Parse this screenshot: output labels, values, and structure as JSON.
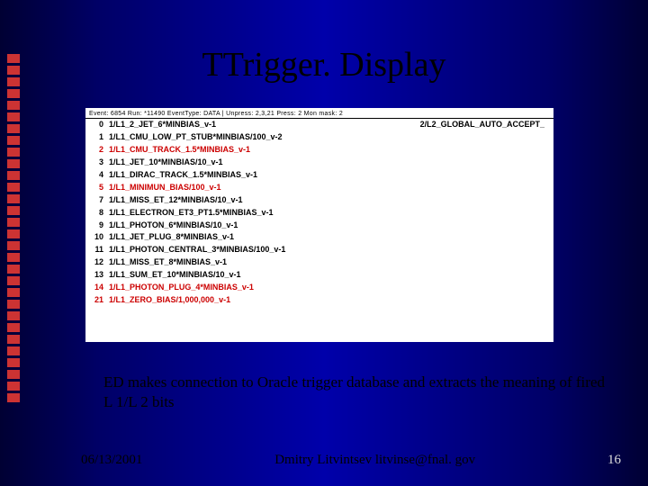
{
  "title": "TTrigger. Display",
  "panel_header": "Event: 6854  Run: *11490  EventType: DATA | Unpress: 2,3,21 Press: 2 Mon mask: 2",
  "rows": [
    {
      "idx": "0",
      "text": "1/L1_2_JET_6*MINBIAS_v-1",
      "color": "black",
      "extra": "2/L2_GLOBAL_AUTO_ACCEPT_"
    },
    {
      "idx": "1",
      "text": "1/L1_CMU_LOW_PT_STUB*MINBIAS/100_v-2",
      "color": "black"
    },
    {
      "idx": "2",
      "text": "1/L1_CMU_TRACK_1.5*MINBIAS_v-1",
      "color": "red"
    },
    {
      "idx": "3",
      "text": "1/L1_JET_10*MINBIAS/10_v-1",
      "color": "black"
    },
    {
      "idx": "4",
      "text": "1/L1_DIRAC_TRACK_1.5*MINBIAS_v-1",
      "color": "black"
    },
    {
      "idx": "5",
      "text": "1/L1_MINIMUN_BIAS/100_v-1",
      "color": "red"
    },
    {
      "idx": "7",
      "text": "1/L1_MISS_ET_12*MINBIAS/10_v-1",
      "color": "black"
    },
    {
      "idx": "8",
      "text": "1/L1_ELECTRON_ET3_PT1.5*MINBIAS_v-1",
      "color": "black"
    },
    {
      "idx": "9",
      "text": "1/L1_PHOTON_6*MINBIAS/10_v-1",
      "color": "black"
    },
    {
      "idx": "10",
      "text": "1/L1_JET_PLUG_8*MINBIAS_v-1",
      "color": "black"
    },
    {
      "idx": "11",
      "text": "1/L1_PHOTON_CENTRAL_3*MINBIAS/100_v-1",
      "color": "black"
    },
    {
      "idx": "12",
      "text": "1/L1_MISS_ET_8*MINBIAS_v-1",
      "color": "black"
    },
    {
      "idx": "13",
      "text": "1/L1_SUM_ET_10*MINBIAS/10_v-1",
      "color": "black"
    },
    {
      "idx": "14",
      "text": "1/L1_PHOTON_PLUG_4*MINBIAS_v-1",
      "color": "red"
    },
    {
      "idx": "21",
      "text": "1/L1_ZERO_BIAS/1,000,000_v-1",
      "color": "red"
    }
  ],
  "caption": "ED makes connection to Oracle trigger database and extracts the meaning of fired L 1/L 2 bits",
  "footer": {
    "date": "06/13/2001",
    "author": "Dmitry Litvintsev litvinse@fnal. gov",
    "page": "16"
  },
  "bullet_count": 30,
  "colors": {
    "red": "#cc0000",
    "black": "#000000"
  }
}
